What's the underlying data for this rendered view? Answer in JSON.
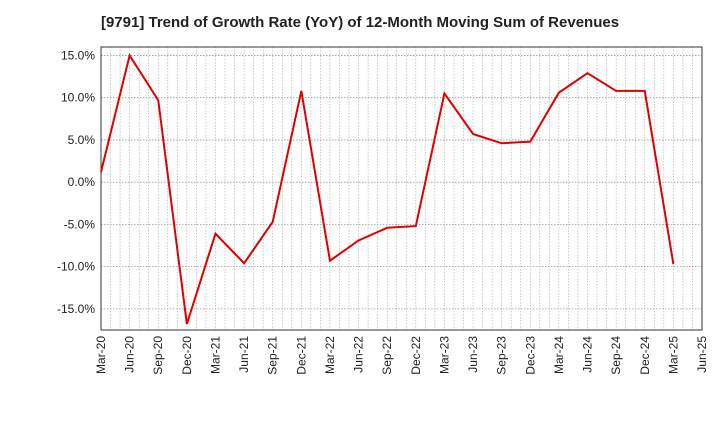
{
  "chart_data": {
    "type": "line",
    "title": "[9791]  Trend of Growth Rate (YoY) of 12-Month Moving Sum of Revenues",
    "xlabel": "",
    "ylabel": "",
    "x_ticks": [
      "Mar-20",
      "Jun-20",
      "Sep-20",
      "Dec-20",
      "Mar-21",
      "Jun-21",
      "Sep-21",
      "Dec-21",
      "Mar-22",
      "Jun-22",
      "Sep-22",
      "Dec-22",
      "Mar-23",
      "Jun-23",
      "Sep-23",
      "Dec-23",
      "Mar-24",
      "Jun-24",
      "Sep-24",
      "Dec-24",
      "Mar-25",
      "Jun-25"
    ],
    "y_ticks": [
      "15.0%",
      "10.0%",
      "5.0%",
      "0.0%",
      "-5.0%",
      "-10.0%",
      "-15.0%"
    ],
    "y_tick_values": [
      15,
      10,
      5,
      0,
      -5,
      -10,
      -15
    ],
    "ylim": [
      -17.5,
      16.0
    ],
    "grid": true,
    "series": [
      {
        "color": "#e00000",
        "x": [
          "Mar-20",
          "Jun-20",
          "Sep-20",
          "Dec-20",
          "Mar-21",
          "Jun-21",
          "Sep-21",
          "Dec-21",
          "Mar-22",
          "Jun-22",
          "Sep-22",
          "Dec-22",
          "Mar-23",
          "Jun-23",
          "Sep-23",
          "Dec-23",
          "Mar-24",
          "Jun-24",
          "Sep-24",
          "Dec-24",
          "Mar-25"
        ],
        "values": [
          1.2,
          15.0,
          9.7,
          -16.8,
          -6.1,
          -9.6,
          -4.7,
          10.8,
          -9.3,
          -6.9,
          -5.4,
          -5.2,
          10.5,
          5.7,
          4.6,
          4.8,
          10.6,
          12.9,
          10.8,
          10.8,
          -9.7
        ]
      }
    ]
  }
}
